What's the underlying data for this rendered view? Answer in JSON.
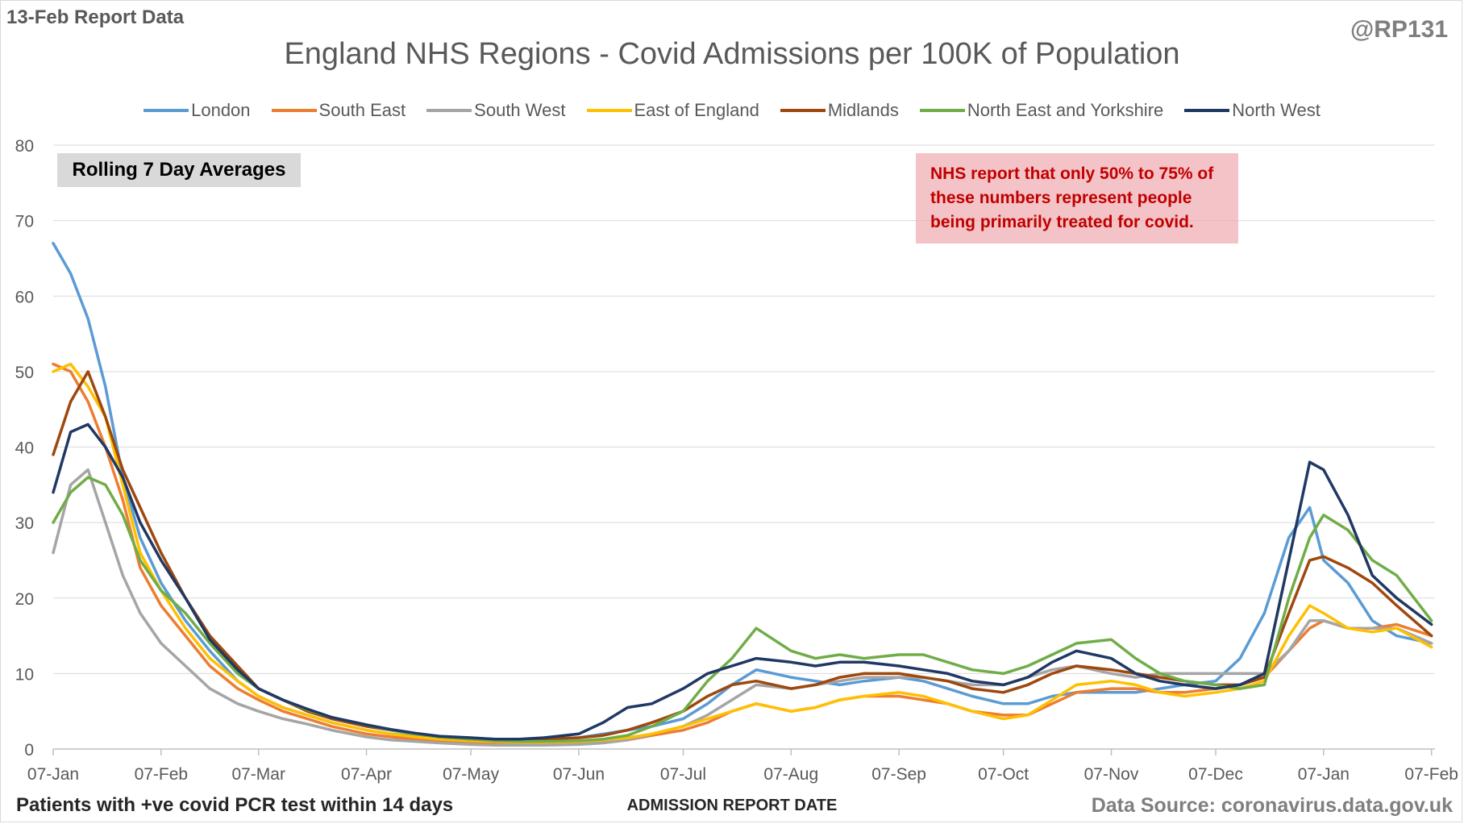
{
  "corner_left": "13-Feb Report Data",
  "corner_right": "@RP131",
  "badge": "Rolling 7 Day Averages",
  "note": "NHS report that only 50% to 75% of these numbers represent people being primarily treated for covid.",
  "footer_left": "Patients with +ve covid PCR test within 14 days",
  "footer_right": "Data Source: coronavirus.data.gov.uk",
  "chart_data": {
    "type": "line",
    "title": "England NHS Regions - Covid Admissions per 100K of Population",
    "xlabel": "ADMISSION REPORT DATE",
    "ylabel": "",
    "ylim": [
      0,
      80
    ],
    "yticks": [
      0,
      10,
      20,
      30,
      40,
      50,
      60,
      70,
      80
    ],
    "x_range": [
      "2021-01-07",
      "2022-02-08"
    ],
    "x_tick_labels": [
      "07-Jan",
      "07-Feb",
      "07-Mar",
      "07-Apr",
      "07-May",
      "07-Jun",
      "07-Jul",
      "07-Aug",
      "07-Sep",
      "07-Oct",
      "07-Nov",
      "07-Dec",
      "07-Jan",
      "07-Feb"
    ],
    "grid": "horizontal",
    "legend_position": "top",
    "x": [
      "2021-01-07",
      "2021-01-12",
      "2021-01-17",
      "2021-01-22",
      "2021-01-27",
      "2021-02-01",
      "2021-02-07",
      "2021-02-14",
      "2021-02-21",
      "2021-03-01",
      "2021-03-07",
      "2021-03-14",
      "2021-03-21",
      "2021-03-28",
      "2021-04-07",
      "2021-04-14",
      "2021-04-21",
      "2021-04-28",
      "2021-05-07",
      "2021-05-14",
      "2021-05-21",
      "2021-05-28",
      "2021-06-07",
      "2021-06-14",
      "2021-06-21",
      "2021-06-28",
      "2021-07-07",
      "2021-07-14",
      "2021-07-21",
      "2021-07-28",
      "2021-08-07",
      "2021-08-14",
      "2021-08-21",
      "2021-08-28",
      "2021-09-07",
      "2021-09-14",
      "2021-09-21",
      "2021-09-28",
      "2021-10-07",
      "2021-10-14",
      "2021-10-21",
      "2021-10-28",
      "2021-11-07",
      "2021-11-14",
      "2021-11-21",
      "2021-11-28",
      "2021-12-07",
      "2021-12-14",
      "2021-12-21",
      "2021-12-28",
      "2022-01-03",
      "2022-01-07",
      "2022-01-14",
      "2022-01-21",
      "2022-01-28",
      "2022-02-07"
    ],
    "series": [
      {
        "name": "London",
        "color": "#5b9bd5",
        "values": [
          67,
          63,
          57,
          48,
          36,
          28,
          22,
          17,
          13,
          9,
          7,
          5.5,
          4.5,
          3.5,
          2.5,
          2,
          1.7,
          1.4,
          1.3,
          1.2,
          1.2,
          1.3,
          1.5,
          2,
          2.5,
          3,
          4,
          6,
          8.5,
          10.5,
          9.5,
          9,
          8.5,
          9,
          9.5,
          9,
          8,
          7,
          6,
          6,
          7,
          7.5,
          7.5,
          7.5,
          8,
          8.5,
          9,
          12,
          18,
          28,
          32,
          25,
          22,
          17,
          15,
          14
        ]
      },
      {
        "name": "South East",
        "color": "#ed7d31",
        "values": [
          51,
          50,
          46,
          40,
          33,
          24,
          19,
          15,
          11,
          8,
          6.5,
          5,
          4,
          3,
          2,
          1.6,
          1.3,
          1,
          0.8,
          0.7,
          0.6,
          0.6,
          0.7,
          0.9,
          1.2,
          1.8,
          2.5,
          3.5,
          5,
          6,
          5,
          5.5,
          6.5,
          7,
          7,
          6.5,
          6,
          5,
          4.5,
          4.5,
          6,
          7.5,
          8,
          8,
          7.5,
          7.5,
          8,
          8.5,
          9.5,
          13,
          16,
          17,
          16,
          16,
          16.5,
          15
        ]
      },
      {
        "name": "South West",
        "color": "#a5a5a5",
        "values": [
          26,
          35,
          37,
          30,
          23,
          18,
          14,
          11,
          8,
          6,
          5,
          4,
          3.3,
          2.5,
          1.6,
          1.2,
          1,
          0.8,
          0.6,
          0.5,
          0.5,
          0.5,
          0.6,
          0.8,
          1.2,
          2,
          3,
          4.5,
          6.5,
          8.5,
          8,
          8.5,
          9,
          9.5,
          9.5,
          9.5,
          9,
          8.5,
          8.5,
          9.5,
          10.5,
          11,
          10,
          9.5,
          10,
          10,
          10,
          10,
          10,
          13,
          17,
          17,
          16,
          16,
          16,
          14
        ]
      },
      {
        "name": "East of England",
        "color": "#ffc000",
        "values": [
          50,
          51,
          48,
          44,
          35,
          26,
          21,
          16,
          12,
          9,
          7,
          5.5,
          4.5,
          3.5,
          2.5,
          2,
          1.6,
          1.3,
          1.1,
          1,
          0.9,
          0.9,
          1,
          1.2,
          1.5,
          2,
          3,
          4,
          5,
          6,
          5,
          5.5,
          6.5,
          7,
          7.5,
          7,
          6,
          5,
          4,
          4.5,
          6.5,
          8.5,
          9,
          8.5,
          7.5,
          7,
          7.5,
          8,
          9,
          15,
          19,
          18,
          16,
          15.5,
          16,
          13.5
        ]
      },
      {
        "name": "Midlands",
        "color": "#9e480e",
        "values": [
          39,
          46,
          50,
          44,
          37,
          32,
          26,
          20,
          15,
          11,
          8,
          6.5,
          5,
          4,
          3,
          2.5,
          2,
          1.6,
          1.3,
          1.2,
          1.2,
          1.3,
          1.5,
          1.8,
          2.5,
          3.5,
          5,
          7,
          8.5,
          9,
          8,
          8.5,
          9.5,
          10,
          10,
          9.5,
          9,
          8,
          7.5,
          8.5,
          10,
          11,
          10.5,
          10,
          9.5,
          9,
          8.5,
          8.5,
          9.5,
          18,
          25,
          25.5,
          24,
          22,
          19,
          15
        ]
      },
      {
        "name": "North East and Yorkshire",
        "color": "#70ad47",
        "values": [
          30,
          34,
          36,
          35,
          31,
          25,
          21,
          18,
          14,
          10,
          8,
          6.5,
          5.2,
          4.2,
          3.2,
          2.5,
          2,
          1.6,
          1.3,
          1.1,
          1,
          1,
          1.1,
          1.3,
          1.8,
          3,
          5,
          9,
          12,
          16,
          13,
          12,
          12.5,
          12,
          12.5,
          12.5,
          11.5,
          10.5,
          10,
          11,
          12.5,
          14,
          14.5,
          12,
          10,
          9,
          8.5,
          8,
          8.5,
          20,
          28,
          31,
          29,
          25,
          23,
          17
        ]
      },
      {
        "name": "North West",
        "color": "#203864",
        "values": [
          34,
          42,
          43,
          40,
          36,
          30,
          25,
          20,
          14.5,
          10.5,
          8,
          6.5,
          5.3,
          4.2,
          3.2,
          2.6,
          2.1,
          1.7,
          1.5,
          1.3,
          1.3,
          1.5,
          2,
          3.5,
          5.5,
          6,
          8,
          10,
          11,
          12,
          11.5,
          11,
          11.5,
          11.5,
          11,
          10.5,
          10,
          9,
          8.5,
          9.5,
          11.5,
          13,
          12,
          10,
          9,
          8.5,
          8,
          8.5,
          10,
          25,
          38,
          37,
          31,
          23,
          20,
          16.5
        ]
      }
    ]
  }
}
